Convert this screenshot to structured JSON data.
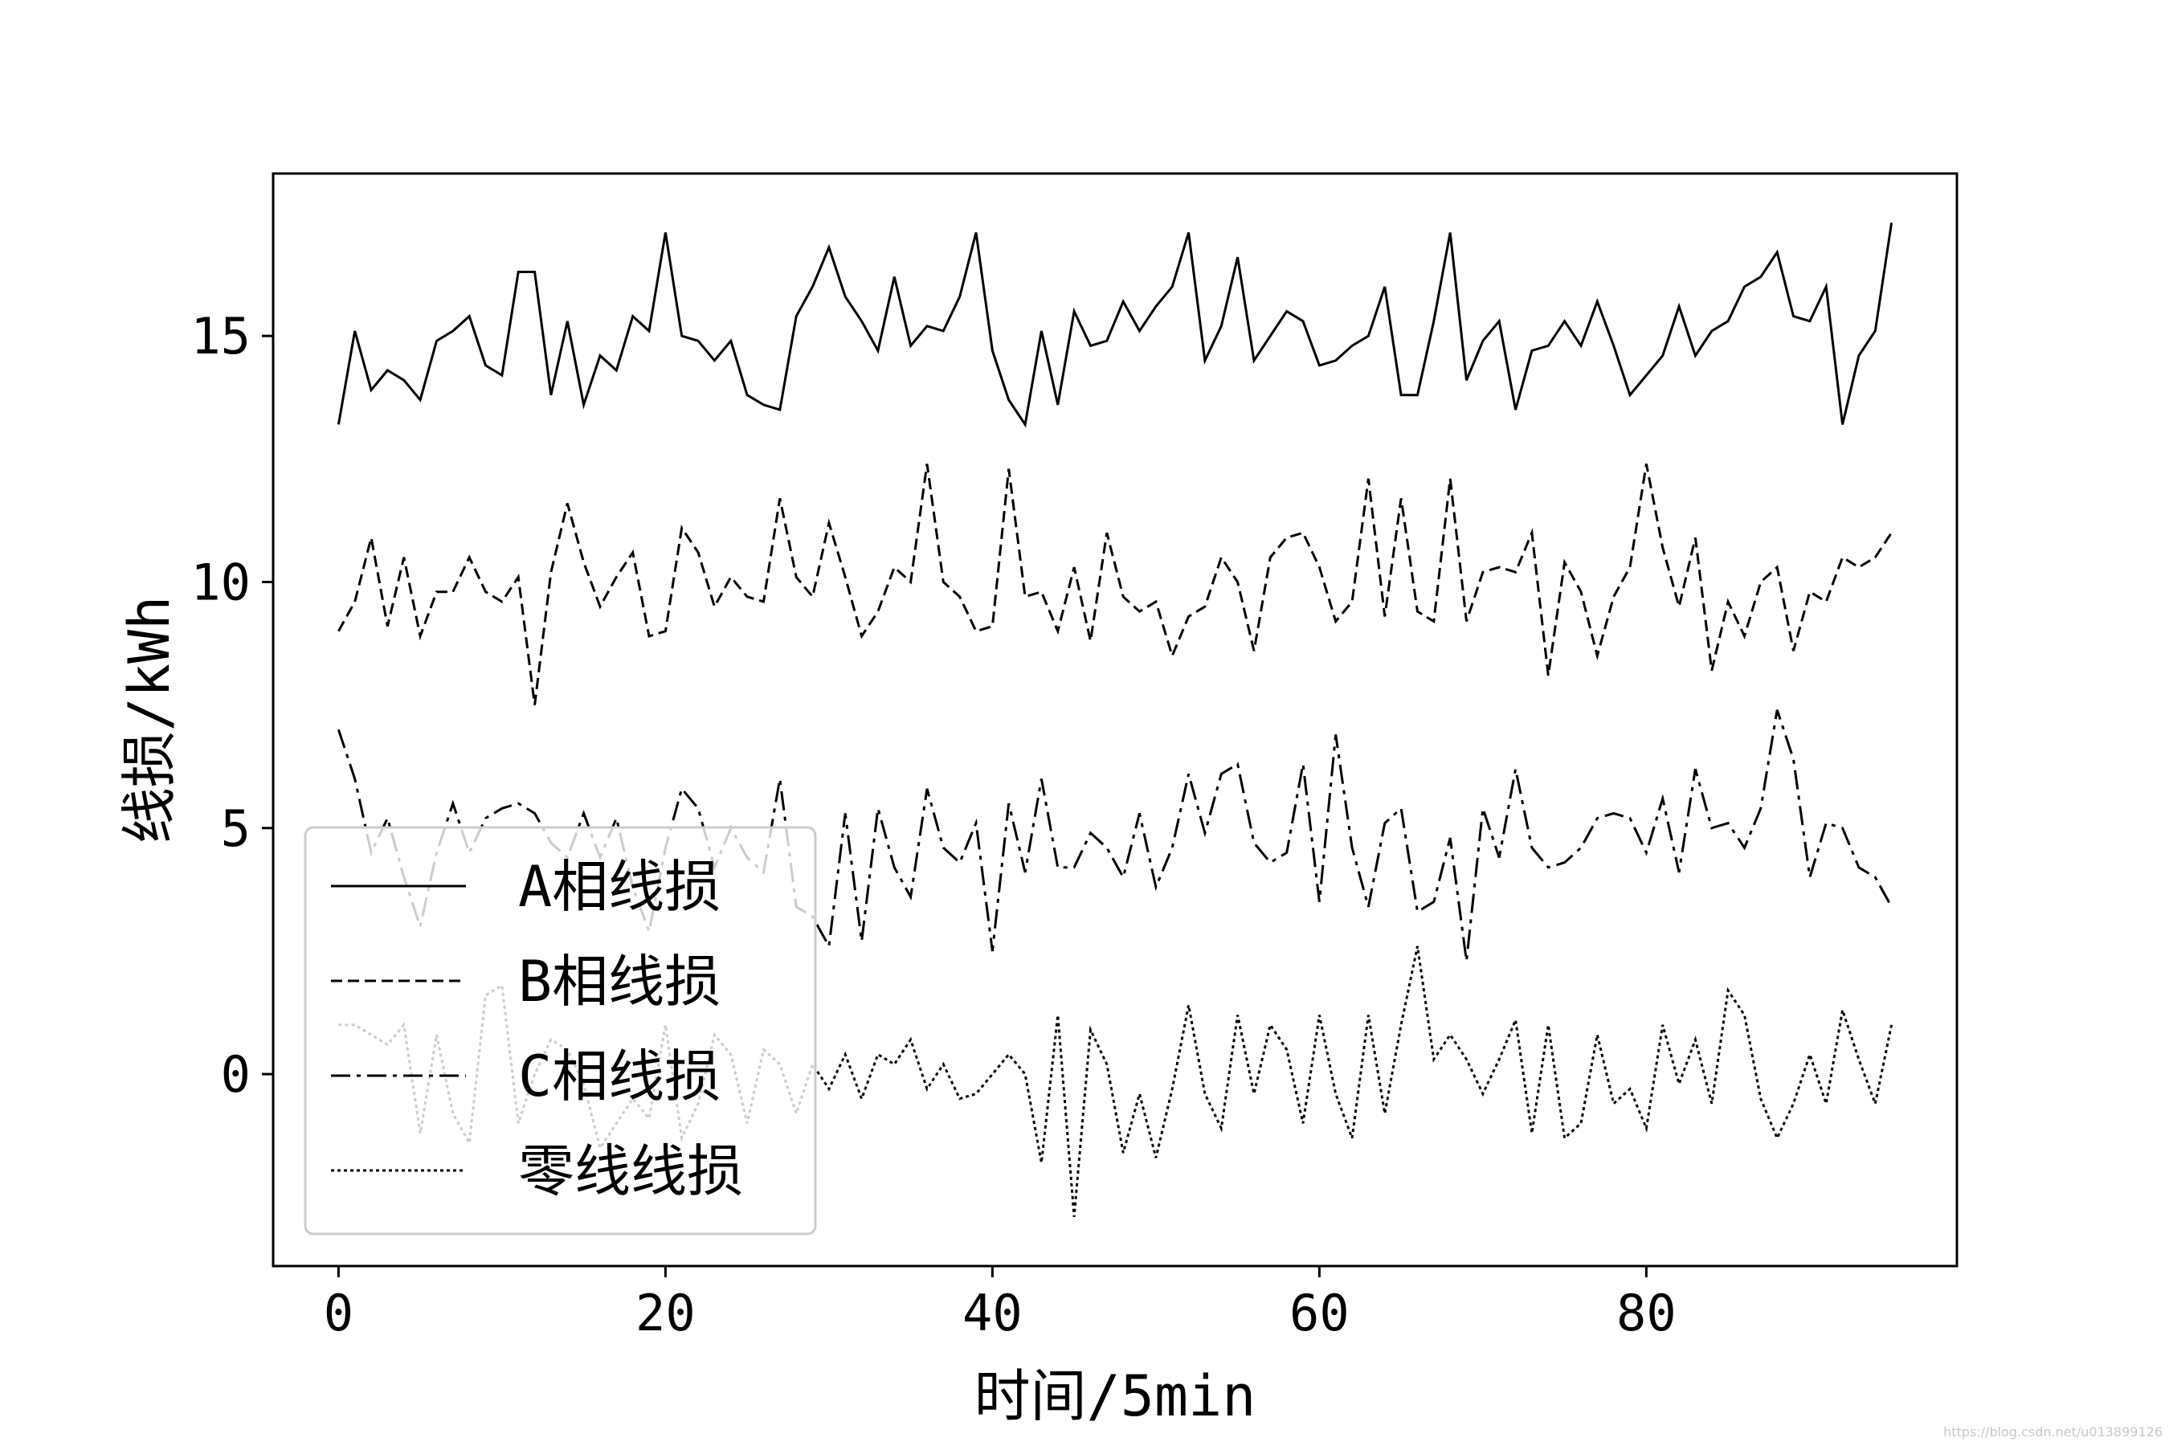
{
  "chart_data": {
    "type": "line",
    "xlabel": "时间/5min",
    "ylabel": "线损/kWh",
    "xlim": [
      -4,
      99
    ],
    "ylim": [
      -3.9,
      18.3
    ],
    "xticks": [
      0,
      20,
      40,
      60,
      80
    ],
    "yticks": [
      0,
      5,
      10,
      15
    ],
    "grid": false,
    "legend_position": "lower-left",
    "x": [
      0,
      1,
      2,
      3,
      4,
      5,
      6,
      7,
      8,
      9,
      10,
      11,
      12,
      13,
      14,
      15,
      16,
      17,
      18,
      19,
      20,
      21,
      22,
      23,
      24,
      25,
      26,
      27,
      28,
      29,
      30,
      31,
      32,
      33,
      34,
      35,
      36,
      37,
      38,
      39,
      40,
      41,
      42,
      43,
      44,
      45,
      46,
      47,
      48,
      49,
      50,
      51,
      52,
      53,
      54,
      55,
      56,
      57,
      58,
      59,
      60,
      61,
      62,
      63,
      64,
      65,
      66,
      67,
      68,
      69,
      70,
      71,
      72,
      73,
      74,
      75,
      76,
      77,
      78,
      79,
      80,
      81,
      82,
      83,
      84,
      85,
      86,
      87,
      88,
      89,
      90,
      91,
      92,
      93,
      94,
      95
    ],
    "series": [
      {
        "name": "A相线损",
        "dash": "solid",
        "values": [
          13.2,
          15.1,
          13.9,
          14.3,
          14.1,
          13.7,
          14.9,
          15.1,
          15.4,
          14.4,
          14.2,
          16.3,
          16.3,
          13.8,
          15.3,
          13.6,
          14.6,
          14.3,
          15.4,
          15.1,
          17.1,
          15.0,
          14.9,
          14.5,
          14.9,
          13.8,
          13.6,
          13.5,
          15.4,
          16.0,
          16.8,
          15.8,
          15.3,
          14.7,
          16.2,
          14.8,
          15.2,
          15.1,
          15.8,
          17.1,
          14.7,
          13.7,
          13.2,
          15.1,
          13.6,
          15.5,
          14.8,
          14.9,
          15.7,
          15.1,
          15.6,
          16.0,
          17.1,
          14.5,
          15.2,
          16.6,
          14.5,
          15.0,
          15.5,
          15.3,
          14.4,
          14.5,
          14.8,
          15.0,
          16.0,
          13.8,
          13.8,
          15.3,
          17.1,
          14.1,
          14.9,
          15.3,
          13.5,
          14.7,
          14.8,
          15.3,
          14.8,
          15.7,
          14.8,
          13.8,
          14.2,
          14.6,
          15.6,
          14.6,
          15.1,
          15.3,
          16.0,
          16.2,
          16.7,
          15.4,
          15.3,
          16.0,
          13.2,
          14.6,
          15.1,
          17.3
        ]
      },
      {
        "name": "B相线损",
        "dash": "dashed",
        "values": [
          9.0,
          9.6,
          10.9,
          9.1,
          10.5,
          8.9,
          9.8,
          9.8,
          10.5,
          9.8,
          9.6,
          10.1,
          7.5,
          10.2,
          11.6,
          10.4,
          9.5,
          10.1,
          10.6,
          8.9,
          9.0,
          11.1,
          10.6,
          9.5,
          10.1,
          9.7,
          9.6,
          11.7,
          10.1,
          9.7,
          11.2,
          10.1,
          8.9,
          9.4,
          10.3,
          10.0,
          12.4,
          10.0,
          9.7,
          9.0,
          9.1,
          12.3,
          9.7,
          9.8,
          9.0,
          10.3,
          8.8,
          11.0,
          9.7,
          9.4,
          9.6,
          8.5,
          9.3,
          9.5,
          10.5,
          10.0,
          8.6,
          10.5,
          10.9,
          11.0,
          10.3,
          9.2,
          9.6,
          12.1,
          9.3,
          11.7,
          9.4,
          9.2,
          12.1,
          9.2,
          10.2,
          10.3,
          10.2,
          11.0,
          8.1,
          10.4,
          9.8,
          8.5,
          9.7,
          10.3,
          12.4,
          10.7,
          9.5,
          10.9,
          8.2,
          9.6,
          8.9,
          10.0,
          10.3,
          8.6,
          9.8,
          9.6,
          10.5,
          10.3,
          10.5,
          11.0
        ]
      },
      {
        "name": "C相线损",
        "dash": "dashdot",
        "values": [
          7.0,
          6.0,
          4.5,
          5.2,
          4.0,
          3.0,
          4.5,
          5.5,
          4.5,
          5.2,
          5.4,
          5.5,
          5.3,
          4.7,
          4.4,
          5.3,
          4.4,
          5.2,
          3.8,
          2.9,
          4.6,
          5.8,
          5.4,
          4.2,
          5.0,
          4.4,
          4.1,
          6.0,
          3.4,
          3.2,
          2.6,
          5.3,
          2.7,
          5.4,
          4.2,
          3.6,
          5.8,
          4.6,
          4.3,
          5.1,
          2.5,
          5.5,
          4.1,
          6.0,
          4.2,
          4.2,
          4.9,
          4.6,
          4.0,
          5.3,
          3.8,
          4.6,
          6.1,
          4.9,
          6.1,
          6.3,
          4.7,
          4.3,
          4.5,
          6.3,
          3.5,
          6.9,
          4.6,
          3.4,
          5.1,
          5.4,
          3.3,
          3.5,
          4.8,
          2.3,
          5.4,
          4.4,
          6.2,
          4.6,
          4.2,
          4.3,
          4.6,
          5.2,
          5.3,
          5.2,
          4.5,
          5.6,
          4.1,
          6.2,
          5.0,
          5.1,
          4.6,
          5.4,
          7.4,
          6.4,
          4.0,
          5.1,
          5.0,
          4.2,
          4.0,
          3.4
        ]
      },
      {
        "name": "零线线损",
        "dash": "dotted",
        "values": [
          1.0,
          1.0,
          0.8,
          0.6,
          1.0,
          -1.2,
          0.8,
          -0.8,
          -1.4,
          1.6,
          1.8,
          -1.0,
          0.0,
          0.7,
          0.5,
          -0.2,
          -1.5,
          -1.0,
          -0.5,
          -0.9,
          1.0,
          -1.3,
          -0.6,
          0.8,
          0.4,
          -1.0,
          0.5,
          0.2,
          -0.8,
          0.2,
          -0.3,
          0.4,
          -0.5,
          0.4,
          0.2,
          0.7,
          -0.3,
          0.2,
          -0.5,
          -0.4,
          0.0,
          0.4,
          0.0,
          -1.8,
          1.2,
          -2.9,
          0.9,
          0.2,
          -1.6,
          -0.4,
          -1.7,
          -0.3,
          1.4,
          -0.4,
          -1.1,
          1.2,
          -0.4,
          1.0,
          0.5,
          -1.0,
          1.2,
          -0.4,
          -1.3,
          1.2,
          -0.8,
          1.0,
          2.6,
          0.3,
          0.8,
          0.3,
          -0.4,
          0.3,
          1.1,
          -1.2,
          1.0,
          -1.3,
          -1.0,
          0.8,
          -0.6,
          -0.3,
          -1.1,
          1.0,
          -0.2,
          0.7,
          -0.6,
          1.7,
          1.2,
          -0.5,
          -1.3,
          -0.6,
          0.4,
          -0.6,
          1.3,
          0.3,
          -0.6,
          1.0
        ]
      }
    ]
  },
  "watermark": "https://blog.csdn.net/u013899126"
}
